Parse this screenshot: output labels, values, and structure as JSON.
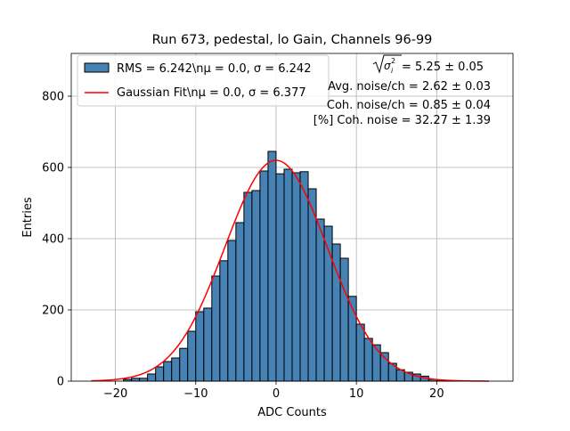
{
  "chart_data": {
    "type": "bar",
    "title": "Run 673, pedestal, lo Gain, Channels 96-99",
    "xlabel": "ADC Counts",
    "ylabel": "Entries",
    "xlim": [
      -25.5,
      29.5
    ],
    "ylim": [
      0,
      920
    ],
    "xticks": [
      -20,
      -10,
      0,
      10,
      20
    ],
    "yticks": [
      0,
      200,
      400,
      600,
      800
    ],
    "grid": true,
    "legend_position": "top-left",
    "bin_width": 1,
    "bins": [
      {
        "left": -19,
        "value": 5
      },
      {
        "left": -18,
        "value": 8
      },
      {
        "left": -17,
        "value": 8
      },
      {
        "left": -16,
        "value": 20
      },
      {
        "left": -15,
        "value": 40
      },
      {
        "left": -14,
        "value": 55
      },
      {
        "left": -13,
        "value": 65
      },
      {
        "left": -12,
        "value": 92
      },
      {
        "left": -11,
        "value": 140
      },
      {
        "left": -10,
        "value": 195
      },
      {
        "left": -9,
        "value": 205
      },
      {
        "left": -8,
        "value": 295
      },
      {
        "left": -7,
        "value": 338
      },
      {
        "left": -6,
        "value": 395
      },
      {
        "left": -5,
        "value": 445
      },
      {
        "left": -4,
        "value": 530
      },
      {
        "left": -3,
        "value": 535
      },
      {
        "left": -2,
        "value": 590
      },
      {
        "left": -1,
        "value": 645
      },
      {
        "left": 0,
        "value": 582
      },
      {
        "left": 1,
        "value": 595
      },
      {
        "left": 2,
        "value": 585
      },
      {
        "left": 3,
        "value": 588
      },
      {
        "left": 4,
        "value": 540
      },
      {
        "left": 5,
        "value": 455
      },
      {
        "left": 6,
        "value": 435
      },
      {
        "left": 7,
        "value": 385
      },
      {
        "left": 8,
        "value": 345
      },
      {
        "left": 9,
        "value": 238
      },
      {
        "left": 10,
        "value": 160
      },
      {
        "left": 11,
        "value": 120
      },
      {
        "left": 12,
        "value": 102
      },
      {
        "left": 13,
        "value": 80
      },
      {
        "left": 14,
        "value": 50
      },
      {
        "left": 15,
        "value": 32
      },
      {
        "left": 16,
        "value": 25
      },
      {
        "left": 17,
        "value": 20
      },
      {
        "left": 18,
        "value": 14
      },
      {
        "left": 19,
        "value": 5
      },
      {
        "left": 20,
        "value": 3
      },
      {
        "left": 21,
        "value": 2
      },
      {
        "left": 22,
        "value": 1
      }
    ],
    "fit": {
      "mu": 0.0,
      "sigma": 6.377,
      "amplitude": 620,
      "x_range": [
        -23,
        26.5
      ]
    },
    "series": [
      {
        "name": "RMS = 6.242\\nμ = 0.0, σ = 6.242",
        "type": "histogram",
        "color": "#4682b4"
      },
      {
        "name": "Gaussian Fit\\nμ = 0.0, σ = 6.377",
        "type": "line",
        "color": "#ff0000"
      }
    ],
    "annotations": [
      {
        "prefix": "",
        "value": " = 5.25 ± 0.05",
        "formula": "sqrt-sigma-i-squared"
      },
      {
        "prefix": "Avg. noise/ch",
        "value": " = 2.62 ± 0.03"
      },
      {
        "prefix": "Coh. noise/ch",
        "value": " = 0.85 ± 0.04"
      },
      {
        "prefix": "[%] Coh. noise",
        "value": " = 32.27 ± 1.39"
      }
    ]
  }
}
